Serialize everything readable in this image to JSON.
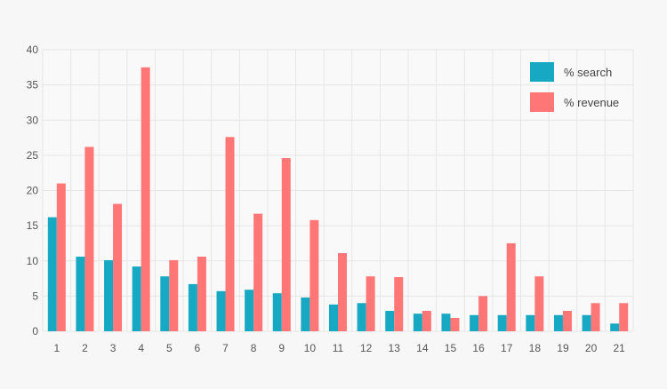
{
  "colors": {
    "background": "#f7f7f7",
    "plot_background": "#f9f9f9",
    "grid": "#e6e6e6",
    "search": "#17a9c3",
    "revenue": "#ff7677"
  },
  "chart_data": {
    "type": "bar",
    "title": "",
    "xlabel": "",
    "ylabel": "",
    "ylim": [
      0,
      40
    ],
    "yticks": [
      0,
      5,
      10,
      15,
      20,
      25,
      30,
      35,
      40
    ],
    "grid": true,
    "legend_position": "top-right",
    "categories": [
      "1",
      "2",
      "3",
      "4",
      "5",
      "6",
      "7",
      "8",
      "9",
      "10",
      "11",
      "12",
      "13",
      "14",
      "15",
      "16",
      "17",
      "18",
      "19",
      "20",
      "21"
    ],
    "series": [
      {
        "name": "% search",
        "color": "#17a9c3",
        "values": [
          16.2,
          10.6,
          10.1,
          9.2,
          7.8,
          6.7,
          5.7,
          5.9,
          5.4,
          4.8,
          3.8,
          4.0,
          2.9,
          2.5,
          2.5,
          2.3,
          2.3,
          2.3,
          2.3,
          2.3,
          1.1
        ]
      },
      {
        "name": "% revenue",
        "color": "#ff7677",
        "values": [
          21.0,
          26.2,
          18.1,
          37.5,
          10.1,
          10.6,
          27.6,
          16.7,
          24.6,
          15.8,
          11.1,
          7.8,
          7.7,
          2.9,
          1.9,
          5.0,
          12.5,
          7.8,
          2.9,
          4.0,
          4.0
        ]
      }
    ]
  }
}
